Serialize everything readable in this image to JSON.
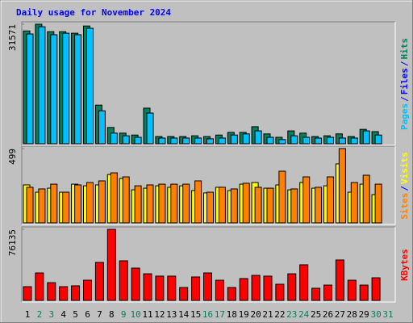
{
  "title": "Daily usage for November 2024",
  "separator": "/",
  "chart_data": [
    {
      "type": "bar",
      "ylim": [
        0,
        31571
      ],
      "yticks": [
        31571
      ],
      "side_label": [
        {
          "text": "Pages",
          "color": "#00c0ff"
        },
        {
          "text": "Files",
          "color": "#0000ff"
        },
        {
          "text": "Hits",
          "color": "#00805c"
        }
      ],
      "series": [
        {
          "name": "Hits",
          "color": "#00805c",
          "values": [
            29800,
            31571,
            29600,
            29600,
            29200,
            31100,
            10200,
            4300,
            2800,
            2300,
            9400,
            1900,
            1900,
            1900,
            2100,
            1900,
            2300,
            3000,
            3000,
            4500,
            2600,
            1700,
            3400,
            2800,
            1900,
            2100,
            2600,
            1900,
            3800,
            3200,
            null
          ]
        },
        {
          "name": "Files",
          "color": "#00c0ff",
          "values": [
            29000,
            30900,
            28800,
            29200,
            28800,
            30500,
            8700,
            2800,
            2100,
            1700,
            8100,
            1500,
            1500,
            1500,
            1500,
            1300,
            1500,
            2300,
            2600,
            3400,
            1700,
            1100,
            2100,
            1700,
            1500,
            1700,
            1500,
            1500,
            3400,
            2300,
            null
          ]
        }
      ]
    },
    {
      "type": "bar",
      "ylim": [
        0,
        499
      ],
      "yticks": [
        499
      ],
      "side_label": [
        {
          "text": "Sites",
          "color": "#ff8000"
        },
        {
          "text": "Visits",
          "color": "#ffff00"
        }
      ],
      "series": [
        {
          "name": "Visits",
          "color": "#ffff00",
          "values": [
            255,
            206,
            233,
            206,
            260,
            249,
            255,
            325,
            298,
            222,
            233,
            249,
            239,
            249,
            217,
            201,
            239,
            217,
            260,
            271,
            233,
            255,
            222,
            271,
            233,
            249,
            396,
            206,
            260,
            190,
            null
          ]
        },
        {
          "name": "Sites",
          "color": "#ff8000",
          "values": [
            239,
            228,
            260,
            206,
            255,
            271,
            282,
            336,
            309,
            249,
            255,
            260,
            260,
            260,
            282,
            206,
            239,
            228,
            266,
            239,
            233,
            347,
            228,
            309,
            239,
            309,
            499,
            271,
            320,
            260,
            null
          ]
        }
      ]
    },
    {
      "type": "bar",
      "ylim": [
        0,
        76135
      ],
      "yticks": [
        76135
      ],
      "side_label": [
        {
          "text": "KBytes",
          "color": "#ff0000"
        }
      ],
      "categories": [
        "1",
        "2",
        "3",
        "4",
        "5",
        "6",
        "7",
        "8",
        "9",
        "10",
        "11",
        "12",
        "13",
        "14",
        "15",
        "16",
        "17",
        "18",
        "19",
        "20",
        "21",
        "22",
        "23",
        "24",
        "25",
        "26",
        "27",
        "28",
        "29",
        "30",
        "31"
      ],
      "category_colors": [
        "#000000",
        "#00805c",
        "#00805c",
        "#000000",
        "#000000",
        "#000000",
        "#000000",
        "#000000",
        "#00805c",
        "#00805c",
        "#000000",
        "#000000",
        "#000000",
        "#000000",
        "#000000",
        "#00805c",
        "#00805c",
        "#000000",
        "#000000",
        "#000000",
        "#000000",
        "#000000",
        "#00805c",
        "#00805c",
        "#000000",
        "#000000",
        "#000000",
        "#000000",
        "#000000",
        "#00805c",
        "#00805c"
      ],
      "series": [
        {
          "name": "KBytes",
          "color": "#ff0000",
          "values": [
            14700,
            29400,
            19000,
            14700,
            15600,
            21600,
            40700,
            76135,
            42400,
            34600,
            28500,
            26000,
            26000,
            13800,
            25100,
            29400,
            21600,
            13800,
            23400,
            26800,
            26000,
            17300,
            28500,
            38100,
            13000,
            16400,
            43300,
            21600,
            16400,
            24200,
            null
          ]
        }
      ]
    }
  ]
}
